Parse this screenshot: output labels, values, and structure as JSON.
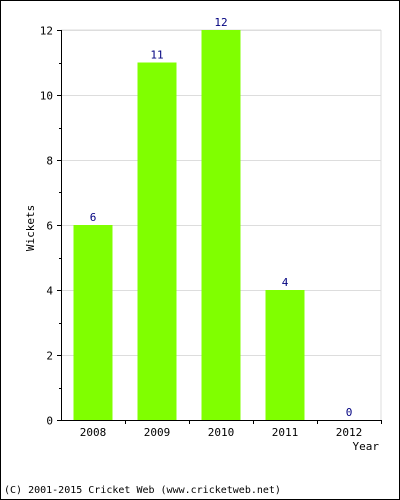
{
  "chart_data": {
    "type": "bar",
    "categories": [
      "2008",
      "2009",
      "2010",
      "2011",
      "2012"
    ],
    "values": [
      6,
      11,
      12,
      4,
      0
    ],
    "data_labels": [
      "6",
      "11",
      "12",
      "4",
      "0"
    ],
    "xlabel": "Year",
    "ylabel": "Wickets",
    "ylim": [
      0,
      12
    ],
    "yticks": [
      "0",
      "2",
      "4",
      "6",
      "8",
      "10",
      "12"
    ],
    "grid": true,
    "bar_color": "#80ff00",
    "label_color": "#000080"
  },
  "footer": "(C) 2001-2015 Cricket Web (www.cricketweb.net)"
}
